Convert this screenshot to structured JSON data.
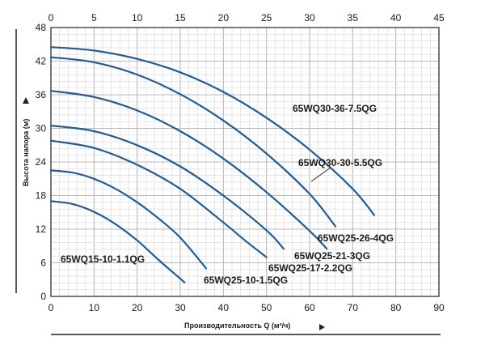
{
  "chart_data": {
    "type": "line",
    "xlabel": "Производительность Q (м³/ч)",
    "ylabel": "Высота напора (м)",
    "xlim": [
      0,
      90
    ],
    "ylim": [
      0,
      48
    ],
    "x_ticks": [
      0,
      10,
      20,
      30,
      40,
      50,
      60,
      70,
      80,
      90
    ],
    "y_ticks": [
      0,
      6,
      12,
      18,
      24,
      30,
      36,
      42,
      48
    ],
    "secondary_x": {
      "unit": "",
      "lim": [
        0,
        45
      ],
      "ticks": [
        0,
        5,
        10,
        15,
        20,
        25,
        30,
        35,
        40,
        45
      ]
    },
    "grid": true,
    "line_color": "#1f5c99",
    "series": [
      {
        "name": "65WQ15-10-1.1QG",
        "x": [
          0,
          5,
          10,
          15,
          20,
          25,
          28,
          31
        ],
        "y": [
          17,
          16.5,
          15.1,
          12.9,
          10,
          6.5,
          4.5,
          2.5
        ]
      },
      {
        "name": "65WQ25-10-1.5QG",
        "x": [
          0,
          5,
          10,
          15,
          20,
          25,
          30,
          36
        ],
        "y": [
          22.5,
          22.1,
          21,
          19.2,
          16.8,
          13.9,
          10.5,
          5
        ]
      },
      {
        "name": "65WQ25-17-2.2QG",
        "x": [
          0,
          10,
          20,
          30,
          40,
          45,
          50
        ],
        "y": [
          27.8,
          26.5,
          23.5,
          19.2,
          13.2,
          10,
          7
        ]
      },
      {
        "name": "65WQ25-21-3QG",
        "x": [
          0,
          10,
          20,
          30,
          40,
          50,
          54
        ],
        "y": [
          30.5,
          29.5,
          27,
          23.2,
          18,
          11.8,
          8.5
        ]
      },
      {
        "name": "65WQ25-26-4QG",
        "x": [
          0,
          10,
          20,
          30,
          40,
          50,
          60,
          64
        ],
        "y": [
          36.7,
          35.6,
          33.2,
          29.5,
          24.6,
          18.6,
          11.7,
          8.5
        ]
      },
      {
        "name": "65WQ30-30-5.5QG",
        "x": [
          0,
          10,
          20,
          30,
          40,
          50,
          60,
          66
        ],
        "y": [
          42.7,
          41.8,
          39.6,
          36.1,
          31.4,
          25.5,
          18.3,
          12.5
        ]
      },
      {
        "name": "65WQ30-36-7.5QG",
        "x": [
          0,
          10,
          20,
          30,
          40,
          50,
          60,
          70,
          75
        ],
        "y": [
          44.5,
          43.9,
          42.4,
          40,
          36.5,
          31.9,
          26.2,
          19.2,
          14.5
        ]
      }
    ]
  }
}
